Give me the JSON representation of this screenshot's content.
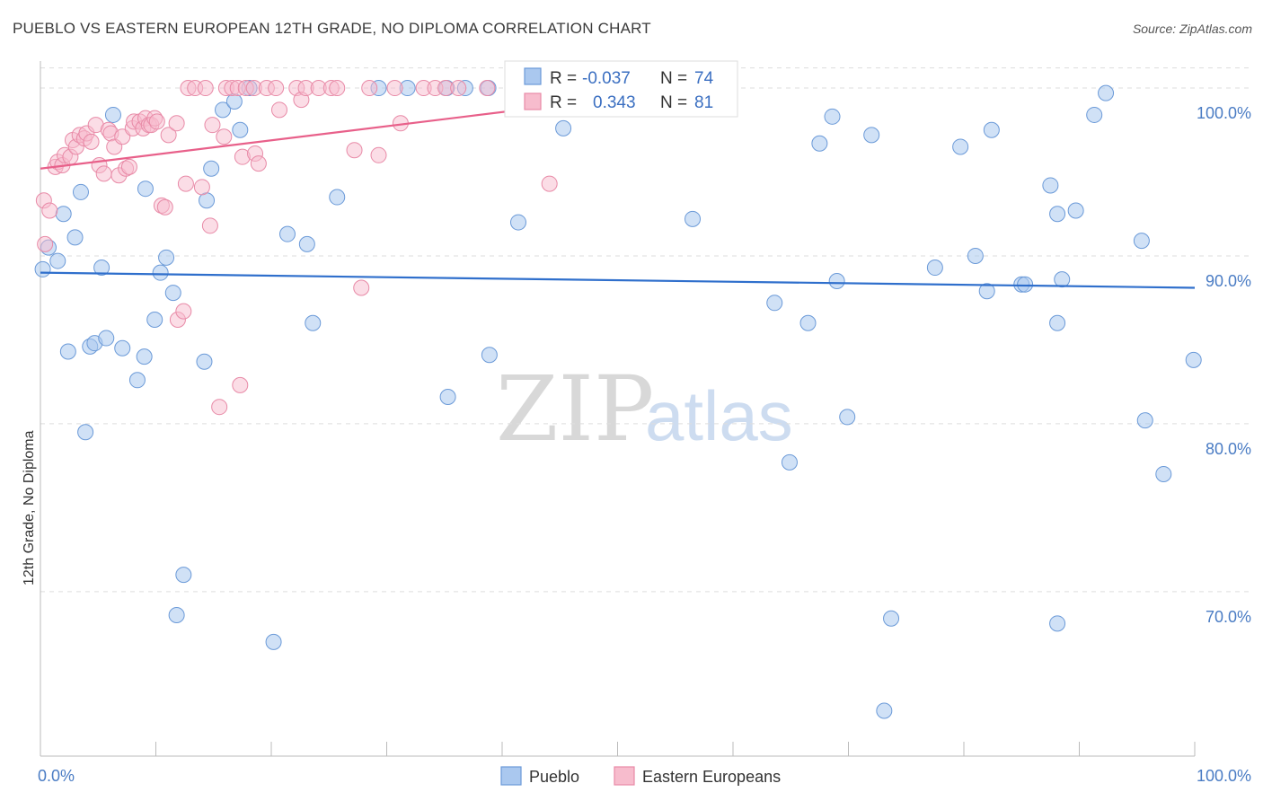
{
  "title": "PUEBLO VS EASTERN EUROPEAN 12TH GRADE, NO DIPLOMA CORRELATION CHART",
  "source": "Source: ZipAtlas.com",
  "watermark": {
    "zip": "ZIP",
    "atlas": "atlas"
  },
  "colors": {
    "pueblo_fill": "#aac8ef",
    "pueblo_stroke": "#6b9ad8",
    "pueblo_line": "#2f6fcc",
    "eastern_fill": "#f7bccd",
    "eastern_stroke": "#e88aa7",
    "eastern_line": "#e8608a",
    "grid": "#dddddd",
    "tick_text": "#4a7cc4"
  },
  "chart_data": {
    "type": "scatter",
    "title": "PUEBLO VS EASTERN EUROPEAN 12TH GRADE, NO DIPLOMA CORRELATION CHART",
    "xlabel": "",
    "ylabel": "12th Grade, No Diploma",
    "xlim": [
      0,
      100
    ],
    "ylim": [
      60.2,
      101.5
    ],
    "x_tick_labels": [
      "0.0%",
      "100.0%"
    ],
    "y_ticks": [
      70,
      80,
      90,
      100
    ],
    "y_tick_labels": [
      "70.0%",
      "80.0%",
      "90.0%",
      "100.0%"
    ],
    "grid": "horizontal dashed",
    "legend_position": "bottom-center",
    "stats": [
      {
        "series": "Pueblo",
        "r_label": "R = ",
        "r": "-0.037",
        "n_label": "N = ",
        "n": "74"
      },
      {
        "series": "Eastern Europeans",
        "r_label": "R = ",
        "r": "0.343",
        "n_label": "N = ",
        "n": "81"
      }
    ],
    "series": [
      {
        "name": "Pueblo",
        "trend": {
          "x": [
            0,
            100
          ],
          "y": [
            89.0,
            88.1
          ]
        },
        "points": [
          [
            0.2,
            89.2
          ],
          [
            0.7,
            90.5
          ],
          [
            1.5,
            89.7
          ],
          [
            2.0,
            92.5
          ],
          [
            2.4,
            84.3
          ],
          [
            3.0,
            91.1
          ],
          [
            3.5,
            93.8
          ],
          [
            3.9,
            79.5
          ],
          [
            4.3,
            84.6
          ],
          [
            4.7,
            84.8
          ],
          [
            5.3,
            89.3
          ],
          [
            5.7,
            85.1
          ],
          [
            6.3,
            98.4
          ],
          [
            7.1,
            84.5
          ],
          [
            8.4,
            82.6
          ],
          [
            9.0,
            84.0
          ],
          [
            9.1,
            94.0
          ],
          [
            9.9,
            86.2
          ],
          [
            10.4,
            89.0
          ],
          [
            10.9,
            89.9
          ],
          [
            11.5,
            87.8
          ],
          [
            11.8,
            68.6
          ],
          [
            12.4,
            71.0
          ],
          [
            14.2,
            83.7
          ],
          [
            14.4,
            93.3
          ],
          [
            14.8,
            95.2
          ],
          [
            15.8,
            98.7
          ],
          [
            16.8,
            99.2
          ],
          [
            17.3,
            97.5
          ],
          [
            18.1,
            100.0
          ],
          [
            20.2,
            67.0
          ],
          [
            21.4,
            91.3
          ],
          [
            23.1,
            90.7
          ],
          [
            23.6,
            86.0
          ],
          [
            25.7,
            93.5
          ],
          [
            29.3,
            100.0
          ],
          [
            31.8,
            100.0
          ],
          [
            35.2,
            100.0
          ],
          [
            35.3,
            81.6
          ],
          [
            36.8,
            100.0
          ],
          [
            38.8,
            100.0
          ],
          [
            38.9,
            84.1
          ],
          [
            41.4,
            92.0
          ],
          [
            45.3,
            97.6
          ],
          [
            56.5,
            92.2
          ],
          [
            63.6,
            87.2
          ],
          [
            64.9,
            77.7
          ],
          [
            66.5,
            86.0
          ],
          [
            67.5,
            96.7
          ],
          [
            68.6,
            98.3
          ],
          [
            69.0,
            88.5
          ],
          [
            69.9,
            80.4
          ],
          [
            72.0,
            97.2
          ],
          [
            73.1,
            62.9
          ],
          [
            73.7,
            68.4
          ],
          [
            77.5,
            89.3
          ],
          [
            79.7,
            96.5
          ],
          [
            81.0,
            90.0
          ],
          [
            82.0,
            87.9
          ],
          [
            82.4,
            97.5
          ],
          [
            85.0,
            88.3
          ],
          [
            85.3,
            88.3
          ],
          [
            87.5,
            94.2
          ],
          [
            88.1,
            68.1
          ],
          [
            88.1,
            92.5
          ],
          [
            88.1,
            86.0
          ],
          [
            88.5,
            88.6
          ],
          [
            89.7,
            92.7
          ],
          [
            91.3,
            98.4
          ],
          [
            92.3,
            99.7
          ],
          [
            95.4,
            90.9
          ],
          [
            95.7,
            80.2
          ],
          [
            97.3,
            77.0
          ],
          [
            99.9,
            83.8
          ]
        ]
      },
      {
        "name": "Eastern Europeans",
        "trend": {
          "x": [
            0,
            57
          ],
          "y": [
            95.2,
            100.0
          ]
        },
        "points": [
          [
            0.3,
            93.3
          ],
          [
            0.4,
            90.7
          ],
          [
            0.8,
            92.7
          ],
          [
            1.3,
            95.3
          ],
          [
            1.5,
            95.6
          ],
          [
            1.9,
            95.4
          ],
          [
            2.1,
            96.0
          ],
          [
            2.6,
            95.9
          ],
          [
            2.8,
            96.9
          ],
          [
            3.1,
            96.5
          ],
          [
            3.4,
            97.2
          ],
          [
            3.8,
            97.0
          ],
          [
            4.0,
            97.3
          ],
          [
            4.4,
            96.8
          ],
          [
            4.8,
            97.8
          ],
          [
            5.1,
            95.4
          ],
          [
            5.5,
            94.9
          ],
          [
            5.9,
            97.5
          ],
          [
            6.1,
            97.3
          ],
          [
            6.4,
            96.5
          ],
          [
            6.8,
            94.8
          ],
          [
            7.1,
            97.1
          ],
          [
            7.4,
            95.2
          ],
          [
            7.7,
            95.3
          ],
          [
            8.0,
            97.6
          ],
          [
            8.1,
            98.0
          ],
          [
            8.6,
            98.0
          ],
          [
            8.9,
            97.6
          ],
          [
            9.1,
            98.2
          ],
          [
            9.4,
            97.8
          ],
          [
            9.6,
            97.8
          ],
          [
            9.9,
            98.2
          ],
          [
            10.1,
            98.0
          ],
          [
            10.5,
            93.0
          ],
          [
            10.8,
            92.9
          ],
          [
            11.1,
            97.2
          ],
          [
            11.8,
            97.9
          ],
          [
            11.9,
            86.2
          ],
          [
            12.4,
            86.7
          ],
          [
            12.6,
            94.3
          ],
          [
            12.8,
            100.0
          ],
          [
            13.4,
            100.0
          ],
          [
            14.0,
            94.1
          ],
          [
            14.3,
            100.0
          ],
          [
            14.7,
            91.8
          ],
          [
            14.9,
            97.8
          ],
          [
            15.5,
            81.0
          ],
          [
            15.9,
            97.1
          ],
          [
            16.1,
            100.0
          ],
          [
            16.6,
            100.0
          ],
          [
            17.1,
            100.0
          ],
          [
            17.3,
            82.3
          ],
          [
            17.5,
            95.9
          ],
          [
            17.8,
            100.0
          ],
          [
            18.5,
            100.0
          ],
          [
            18.6,
            96.1
          ],
          [
            18.9,
            95.5
          ],
          [
            19.6,
            100.0
          ],
          [
            20.4,
            100.0
          ],
          [
            20.7,
            98.7
          ],
          [
            22.2,
            100.0
          ],
          [
            22.6,
            99.3
          ],
          [
            23.0,
            100.0
          ],
          [
            24.1,
            100.0
          ],
          [
            25.2,
            100.0
          ],
          [
            25.7,
            100.0
          ],
          [
            27.2,
            96.3
          ],
          [
            27.8,
            88.1
          ],
          [
            28.5,
            100.0
          ],
          [
            29.3,
            96.0
          ],
          [
            30.7,
            100.0
          ],
          [
            31.2,
            97.9
          ],
          [
            33.2,
            100.0
          ],
          [
            34.2,
            100.0
          ],
          [
            35.1,
            100.0
          ],
          [
            36.2,
            100.0
          ],
          [
            38.7,
            100.0
          ],
          [
            44.1,
            94.3
          ],
          [
            46.5,
            100.0
          ],
          [
            58.2,
            100.0
          ],
          [
            58.8,
            100.0
          ]
        ]
      }
    ]
  }
}
